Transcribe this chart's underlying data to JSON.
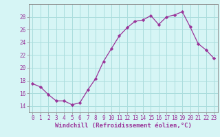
{
  "x": [
    0,
    1,
    2,
    3,
    4,
    5,
    6,
    7,
    8,
    9,
    10,
    11,
    12,
    13,
    14,
    15,
    16,
    17,
    18,
    19,
    20,
    21,
    22,
    23
  ],
  "y": [
    17.5,
    17.0,
    15.8,
    14.8,
    14.8,
    14.2,
    14.5,
    16.5,
    18.3,
    21.0,
    23.0,
    25.0,
    26.3,
    27.3,
    27.5,
    28.2,
    26.8,
    28.0,
    28.3,
    28.8,
    26.4,
    23.8,
    22.8,
    21.5
  ],
  "line_color": "#993399",
  "marker": "D",
  "marker_size": 2.2,
  "bg_color": "#d6f5f5",
  "grid_color": "#aadddd",
  "xlabel": "Windchill (Refroidissement éolien,°C)",
  "xlabel_fontsize": 6.5,
  "tick_fontsize": 5.5,
  "ylim": [
    13,
    30
  ],
  "yticks": [
    14,
    16,
    18,
    20,
    22,
    24,
    26,
    28
  ],
  "xlim": [
    -0.5,
    23.5
  ],
  "tick_color": "#993399",
  "label_color": "#993399"
}
